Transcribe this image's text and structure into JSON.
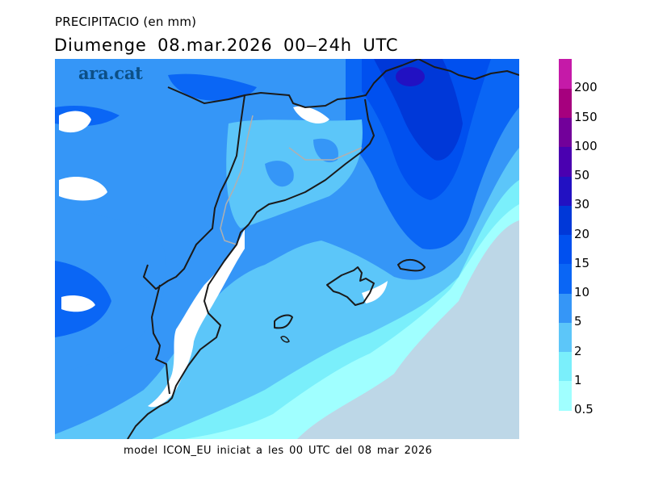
{
  "header": {
    "variable": "PRECIPITACIO (en mm)",
    "period": "Diumenge  08.mar.2026 00‒24h UTC"
  },
  "watermark": "ara.cat",
  "footer": "model ICON_EU iniciat a les 00 UTC del 08 mar 2026",
  "map": {
    "region": "Catalonia, Valencia coast, Balearic Islands, southern France",
    "sea_no_precip_color": "#bdd7e7",
    "coastline_color": "#1a1a1a",
    "internal_border_color": "#b0b0b0"
  },
  "legend": {
    "units": "mm",
    "bins": [
      {
        "label": "0.5",
        "color": "#a0ffff"
      },
      {
        "label": "1",
        "color": "#7aeffb"
      },
      {
        "label": "2",
        "color": "#5cc6f9"
      },
      {
        "label": "5",
        "color": "#3596f7"
      },
      {
        "label": "10",
        "color": "#0a66f5"
      },
      {
        "label": "15",
        "color": "#0050ef"
      },
      {
        "label": "20",
        "color": "#0038d8"
      },
      {
        "label": "30",
        "color": "#2211c2"
      },
      {
        "label": "50",
        "color": "#4a00b0"
      },
      {
        "label": "100",
        "color": "#72009a"
      },
      {
        "label": "150",
        "color": "#a6007e"
      },
      {
        "label": "200",
        "color": "#c51aa8"
      }
    ]
  }
}
